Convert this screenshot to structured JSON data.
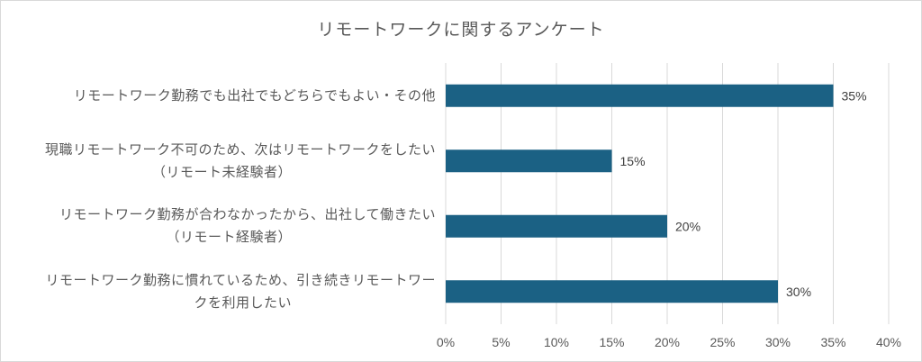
{
  "chart_data": {
    "type": "bar",
    "orientation": "horizontal",
    "title": "リモートワークに関するアンケート",
    "categories": [
      [
        "リモートワーク勤務でも出社でもどちらでもよい・その他"
      ],
      [
        "現職リモートワーク不可のため、次はリモートワークをしたい",
        "（リモート未経験者）"
      ],
      [
        "リモートワーク勤務が合わなかったから、出社して働きたい",
        "（リモート経験者）"
      ],
      [
        "リモートワーク勤務に慣れているため、引き続きリモートワー",
        "クを利用したい"
      ]
    ],
    "values": [
      0.35,
      0.15,
      0.2,
      0.3
    ],
    "data_labels": [
      "35%",
      "15%",
      "20%",
      "30%"
    ],
    "x_ticks": [
      "0%",
      "5%",
      "10%",
      "15%",
      "20%",
      "25%",
      "30%",
      "35%",
      "40%"
    ],
    "xlim": [
      0,
      0.4
    ],
    "grid": true,
    "bar_color": "#1b6184",
    "grid_color": "#d9d9d9"
  }
}
